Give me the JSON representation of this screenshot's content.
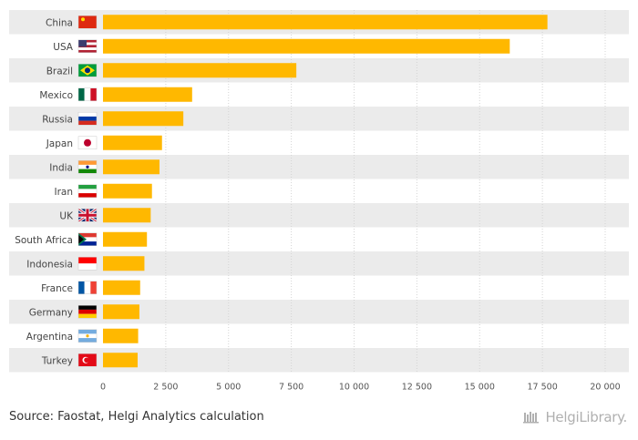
{
  "chart_data": {
    "type": "bar",
    "orientation": "horizontal",
    "categories": [
      "China",
      "USA",
      "Brazil",
      "Mexico",
      "Russia",
      "Japan",
      "India",
      "Iran",
      "UK",
      "South Africa",
      "Indonesia",
      "France",
      "Germany",
      "Argentina",
      "Turkey"
    ],
    "values": [
      17700,
      16200,
      7700,
      3550,
      3200,
      2350,
      2250,
      1950,
      1900,
      1750,
      1650,
      1480,
      1450,
      1400,
      1380
    ],
    "xlim": [
      0,
      20000
    ],
    "xticks": [
      0,
      2500,
      5000,
      7500,
      10000,
      12500,
      15000,
      17500,
      20000
    ],
    "xtick_labels": [
      "0",
      "2 500",
      "5 000",
      "7 500",
      "10 000",
      "12 500",
      "15 000",
      "17 500",
      "20 000"
    ],
    "title": "",
    "xlabel": "",
    "ylabel": "",
    "grid": true,
    "bar_color": "#FFB800",
    "stripe_color": "#EBEBEB"
  },
  "source": "Source: Faostat, Helgi Analytics calculation",
  "logo": {
    "text": "HelgiLibrary.",
    "icon": "library-icon"
  }
}
